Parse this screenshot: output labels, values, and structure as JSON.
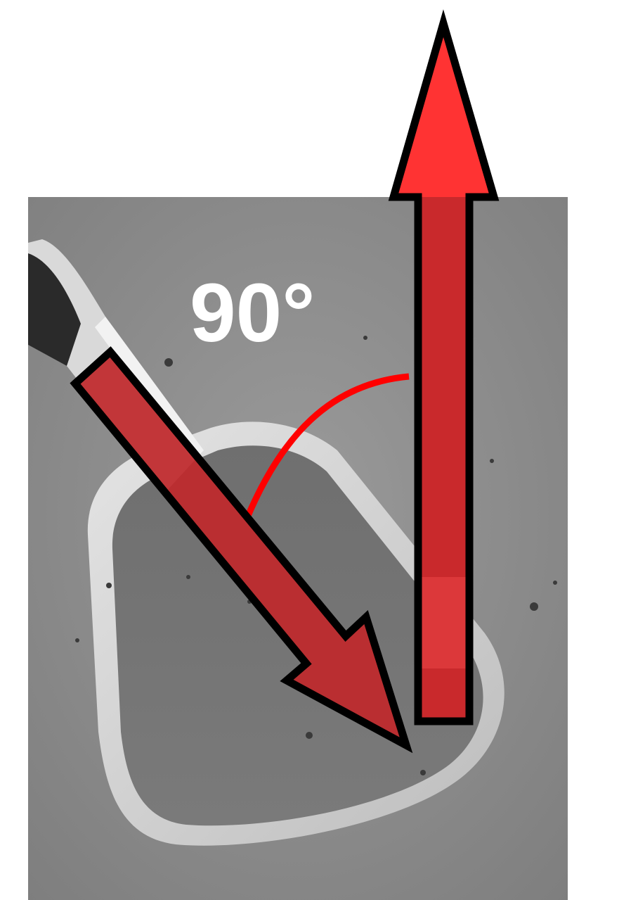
{
  "figure": {
    "angle_label": "90°",
    "colors": {
      "background": "#ffffff",
      "sem_gray": "#8c8c8c",
      "arrow_fill_solid": "#ff3333",
      "arrow_fill_dark": "#c0282b",
      "arrow_outline": "#000000",
      "angle_arc": "#ff0000",
      "angle_label": "#ffffff"
    }
  }
}
